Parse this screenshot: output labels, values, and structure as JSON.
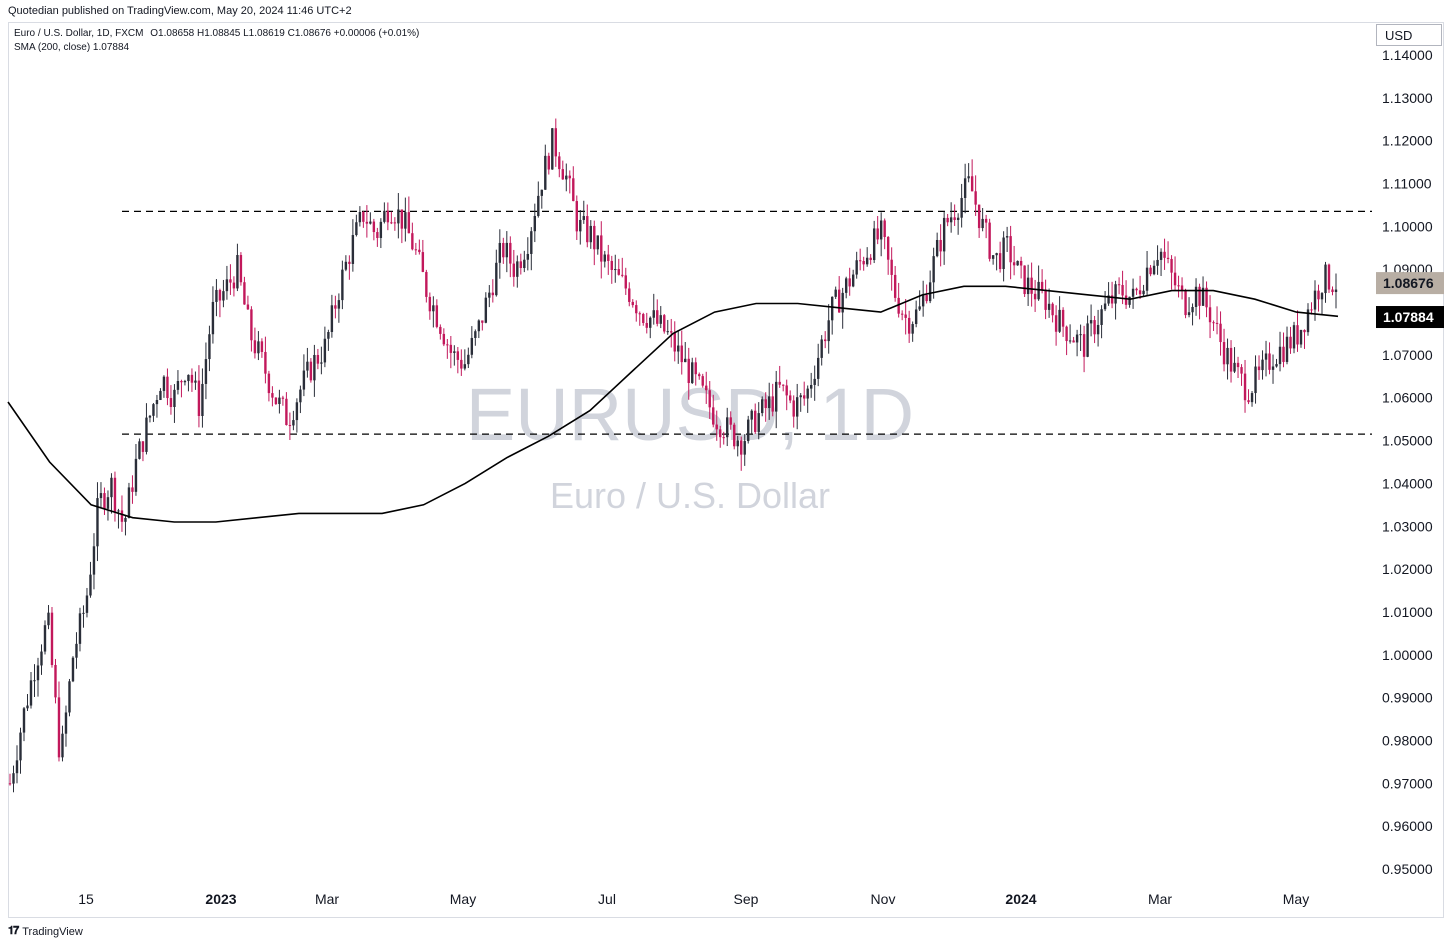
{
  "header": {
    "published": "Quotedian published on TradingView.com, May 20, 2024 11:46 UTC+2",
    "legend_symbol": "Euro / U.S. Dollar, 1D, FXCM",
    "legend_ohlc": "O1.08658  H1.08845  L1.08619  C1.08676  +0.00006 (+0.01%)",
    "legend_sma": "SMA (200, close)  1.07884"
  },
  "price_axis": {
    "currency": "USD",
    "last_price_label": "1.08676",
    "sma_label": "1.07884"
  },
  "watermark": {
    "symbol": "EURUSD, 1D",
    "name": "Euro / U.S. Dollar"
  },
  "footer": {
    "brand": "TradingView"
  },
  "colors": {
    "up_candle": "#2a2e39",
    "down_candle": "#c2185b",
    "sma_line": "#000000",
    "dashed_lines": "#000000",
    "last_price_badge": "#b8aea4",
    "sma_badge": "#000000"
  },
  "chart_data": {
    "type": "candlestick",
    "symbol": "EURUSD",
    "interval": "1D",
    "ylim": [
      0.945,
      1.145
    ],
    "y_ticks": [
      "1.14000",
      "1.13000",
      "1.12000",
      "1.11000",
      "1.10000",
      "1.09000",
      "1.08000",
      "1.07000",
      "1.06000",
      "1.05000",
      "1.04000",
      "1.03000",
      "1.02000",
      "1.01000",
      "1.00000",
      "0.99000",
      "0.98000",
      "0.97000",
      "0.96000",
      "0.95000"
    ],
    "x_ticks": [
      {
        "label": "15",
        "bold": false
      },
      {
        "label": "2023",
        "bold": true
      },
      {
        "label": "Mar",
        "bold": false
      },
      {
        "label": "May",
        "bold": false
      },
      {
        "label": "Jul",
        "bold": false
      },
      {
        "label": "Sep",
        "bold": false
      },
      {
        "label": "Nov",
        "bold": false
      },
      {
        "label": "2024",
        "bold": true
      },
      {
        "label": "Mar",
        "bold": false
      },
      {
        "label": "May",
        "bold": false
      }
    ],
    "horizontal_levels": [
      1.1035,
      1.0515
    ],
    "last_close": 1.08676,
    "sma_last": 1.07884,
    "close_path": [
      0.97,
      0.985,
      0.998,
      1.008,
      0.975,
      1.0,
      1.012,
      1.035,
      1.04,
      1.03,
      1.045,
      1.055,
      1.065,
      1.06,
      1.068,
      1.058,
      1.08,
      1.085,
      1.09,
      1.075,
      1.068,
      1.06,
      1.055,
      1.062,
      1.068,
      1.072,
      1.085,
      1.095,
      1.103,
      1.098,
      1.105,
      1.102,
      1.095,
      1.085,
      1.078,
      1.07,
      1.068,
      1.075,
      1.085,
      1.095,
      1.09,
      1.097,
      1.11,
      1.12,
      1.112,
      1.1,
      1.098,
      1.092,
      1.088,
      1.085,
      1.08,
      1.078,
      1.075,
      1.07,
      1.065,
      1.06,
      1.055,
      1.052,
      1.05,
      1.055,
      1.058,
      1.062,
      1.058,
      1.06,
      1.07,
      1.08,
      1.085,
      1.09,
      1.095,
      1.098,
      1.085,
      1.078,
      1.08,
      1.09,
      1.1,
      1.105,
      1.11,
      1.1,
      1.092,
      1.095,
      1.088,
      1.085,
      1.083,
      1.078,
      1.075,
      1.072,
      1.078,
      1.082,
      1.085,
      1.083,
      1.09,
      1.095,
      1.088,
      1.082,
      1.085,
      1.08,
      1.072,
      1.066,
      1.062,
      1.065,
      1.07,
      1.072,
      1.075,
      1.082,
      1.088,
      1.0868
    ],
    "sma_path": [
      1.059,
      1.045,
      1.035,
      1.032,
      1.031,
      1.031,
      1.032,
      1.033,
      1.033,
      1.033,
      1.035,
      1.04,
      1.046,
      1.051,
      1.057,
      1.066,
      1.075,
      1.08,
      1.082,
      1.082,
      1.081,
      1.08,
      1.084,
      1.086,
      1.086,
      1.085,
      1.084,
      1.083,
      1.085,
      1.085,
      1.083,
      1.08,
      1.079
    ],
    "series": [
      {
        "name": "SMA (200, close)",
        "type": "line"
      }
    ]
  }
}
